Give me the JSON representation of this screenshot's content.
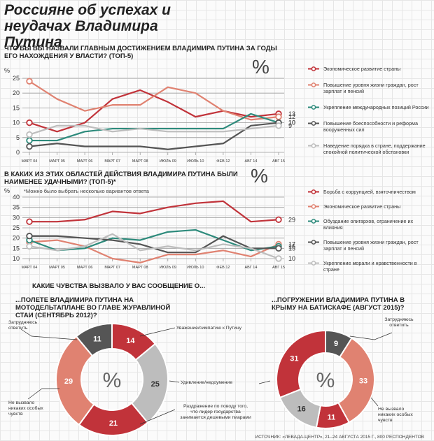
{
  "title": "Россияне об успехах и неудачах Владимира Путина",
  "percent_sign": "%",
  "colors": {
    "red": "#c1333a",
    "salmon": "#e08271",
    "teal": "#2e8b7c",
    "dark": "#555555",
    "light": "#bdbdbd",
    "grid": "#999999"
  },
  "section3_title": "КАКИЕ ЧУВСТВА ВЫЗВАЛО У ВАС СООБЩЕНИЕ О...",
  "source": "ИСТОЧНИК: «ЛЕВАДА-ЦЕНТР», 21–24 АВГУСТА 2015 Г., 800 РЕСПОНДЕНТОВ",
  "chart_data": [
    {
      "type": "line",
      "title": "ЧТО БЫ ВЫ НАЗВАЛИ ГЛАВНЫМ ДОСТИЖЕНИЕМ ВЛАДИМИРА ПУТИНА ЗА ГОДЫ ЕГО НАХОЖДЕНИЯ У ВЛАСТИ? (топ-5)",
      "unit": "%",
      "x": [
        "МАРТ 04",
        "МАРТ 05",
        "МАРТ 06",
        "МАРТ 07",
        "МАРТ 08",
        "ИЮЛЬ 09",
        "ИЮЛЬ 10",
        "ФЕВ 12",
        "АВГ 14",
        "АВГ 15"
      ],
      "ylim": [
        0,
        25
      ],
      "yticks": [
        0,
        5,
        10,
        15,
        20,
        25
      ],
      "grid": true,
      "legend_position": "right",
      "series": [
        {
          "name": "Экономическое развитие страны",
          "color": "red",
          "values": [
            10,
            7,
            10,
            18,
            21,
            17,
            12,
            14,
            12,
            13
          ]
        },
        {
          "name": "Повышение уровня жизни граждан, рост зарплат и пенсий",
          "color": "salmon",
          "values": [
            24,
            18,
            14,
            16,
            16,
            22,
            20,
            14,
            11,
            12
          ]
        },
        {
          "name": "Укрепление международных позиций России",
          "color": "teal",
          "values": [
            4,
            4,
            7,
            8,
            8,
            8,
            8,
            8,
            13,
            10
          ]
        },
        {
          "name": "Повышение боеспособности и реформа вооруженных сил",
          "color": "dark",
          "values": [
            2,
            3,
            2,
            2,
            2,
            1,
            2,
            3,
            9,
            10
          ]
        },
        {
          "name": "Наведение порядка в стране, поддержание спокойной политической обстановки",
          "color": "light",
          "values": [
            6,
            9,
            9,
            7,
            8,
            7,
            7,
            7,
            8,
            9
          ]
        }
      ],
      "end_labels": [
        "13",
        "12",
        "10",
        "10",
        "9"
      ]
    },
    {
      "type": "line",
      "title": "В КАКИХ ИЗ ЭТИХ ОБЛАСТЕЙ ДЕЙСТВИЯ ВЛАДИМИРА ПУТИНА БЫЛИ НАИМЕНЕЕ УДАЧНЫМИ? (топ-5)*",
      "note": "*Можно было выбрать несколько вариантов ответа",
      "unit": "%",
      "x": [
        "МАРТ 04",
        "МАРТ 05",
        "МАРТ 06",
        "МАРТ 07",
        "МАРТ 08",
        "ИЮЛЬ 09",
        "ИЮЛЬ 10",
        "ФЕВ 12",
        "АВГ 14",
        "АВГ 15"
      ],
      "ylim": [
        10,
        40
      ],
      "yticks": [
        10,
        15,
        20,
        25,
        30,
        35,
        40
      ],
      "grid": true,
      "legend_position": "right",
      "series": [
        {
          "name": "Борьба с коррупцией, взяточничеством",
          "color": "red",
          "values": [
            28,
            28,
            29,
            33,
            32,
            35,
            37,
            38,
            28,
            29
          ]
        },
        {
          "name": "Экономическое развитие страны",
          "color": "salmon",
          "values": [
            18,
            19,
            16,
            10,
            8,
            12,
            12,
            14,
            11,
            17
          ]
        },
        {
          "name": "Обуздание олигархов, ограничение их влияния",
          "color": "teal",
          "values": [
            19,
            14,
            15,
            20,
            19,
            23,
            24,
            19,
            14,
            16
          ]
        },
        {
          "name": "Повышение уровня жизни граждан, рост зарплат и пенсий",
          "color": "dark",
          "values": [
            21,
            21,
            20,
            19,
            17,
            13,
            13,
            21,
            15,
            15
          ]
        },
        {
          "name": "Укрепление морали и нравственности в стране",
          "color": "light",
          "values": [
            16,
            14,
            16,
            22,
            14,
            16,
            14,
            17,
            15,
            10
          ]
        }
      ],
      "end_labels": [
        "29",
        "17",
        "16",
        "15",
        "10"
      ]
    },
    {
      "type": "pie",
      "title": "...ПОЛЕТЕ ВЛАДИМИРА ПУТИНА НА МОТОДЕЛЬТАПЛАНЕ ВО ГЛАВЕ ЖУРАВЛИНОЙ СТАИ (сентябрь 2012)?",
      "unit": "%",
      "slices": [
        {
          "label": "Уважение/симпатию к Путину",
          "value": 14,
          "color": "red"
        },
        {
          "label": "Удивление/недоумение",
          "value": 25,
          "color": "light"
        },
        {
          "label": "Раздражение по поводу того, что лидер государства занимается дешевыми пиарами",
          "value": 21,
          "color": "red"
        },
        {
          "label": "Не вызвало никаких особых чувств",
          "value": 29,
          "color": "salmon"
        },
        {
          "label": "Затрудняюсь ответить",
          "value": 11,
          "color": "dark"
        }
      ]
    },
    {
      "type": "pie",
      "title": "...ПОГРУЖЕНИИ ВЛАДИМИРА ПУТИНА В КРЫМУ НА БАТИСКАФЕ (август 2015)?",
      "unit": "%",
      "slices": [
        {
          "label": "Затрудняюсь ответить",
          "value": 9,
          "color": "dark"
        },
        {
          "label": "Не вызвало никаких особых чувств",
          "value": 33,
          "color": "salmon"
        },
        {
          "label": "Раздражение по поводу того, что лидер государства занимается дешевыми пиарами",
          "value": 11,
          "color": "red"
        },
        {
          "label": "Удивление/недоумение",
          "value": 16,
          "color": "light"
        },
        {
          "label": "Уважение/симпатию к Путину",
          "value": 31,
          "color": "red"
        }
      ]
    }
  ],
  "donut_annotations": {
    "a1": "Затрудняюсь ответить",
    "a2": "Уважение/симпатию к Путину",
    "a3": "Удивление/недоумение",
    "a4": "Раздражение по поводу того, что лидер государства занимается дешевыми пиарами",
    "a5": "Не вызвало никаких особых чувств",
    "b1": "Затрудняюсь ответить",
    "b2": "Не вызвало никаких особых чувств"
  }
}
